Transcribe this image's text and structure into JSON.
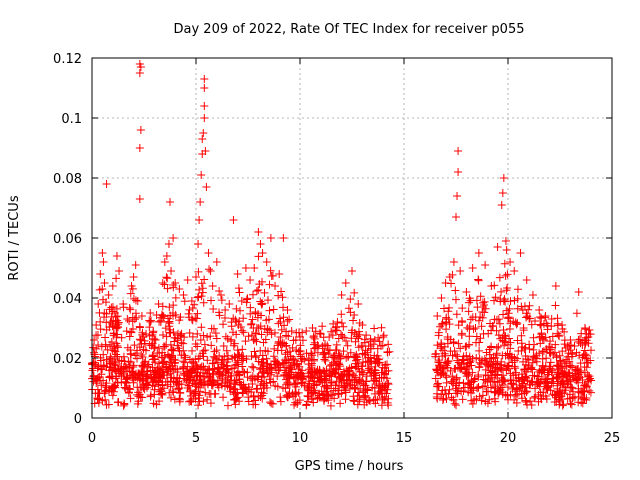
{
  "chart_data": {
    "type": "scatter",
    "title": "Day 209 of 2022, Rate Of TEC Index for receiver p055",
    "xlabel": "GPS time / hours",
    "ylabel": "ROTI / TECUs",
    "xlim": [
      0,
      25
    ],
    "ylim": [
      0,
      0.12
    ],
    "xticks": [
      0,
      5,
      10,
      15,
      20,
      25
    ],
    "xtick_labels": [
      "0",
      "5",
      "10",
      "15",
      "20",
      "25"
    ],
    "yticks": [
      0,
      0.02,
      0.04,
      0.06,
      0.08,
      0.1,
      0.12
    ],
    "ytick_labels": [
      "0",
      "0.02",
      "0.04",
      "0.06",
      "0.08",
      "0.1",
      "0.12"
    ],
    "grid": true,
    "marker": "+",
    "color": "#ff0000",
    "data_gap_hours": [
      14.3,
      16.5
    ],
    "series": [
      {
        "name": "ROTI p055",
        "points": [
          [
            0.0,
            0.018
          ],
          [
            0.1,
            0.026
          ],
          [
            0.2,
            0.031
          ],
          [
            0.3,
            0.038
          ],
          [
            0.4,
            0.048
          ],
          [
            0.5,
            0.055
          ],
          [
            0.55,
            0.052
          ],
          [
            0.6,
            0.045
          ],
          [
            0.7,
            0.078
          ],
          [
            0.8,
            0.041
          ],
          [
            1.0,
            0.044
          ],
          [
            1.1,
            0.035
          ],
          [
            1.2,
            0.054
          ],
          [
            1.3,
            0.049
          ],
          [
            1.5,
            0.038
          ],
          [
            1.7,
            0.033
          ],
          [
            1.9,
            0.044
          ],
          [
            2.0,
            0.047
          ],
          [
            2.1,
            0.051
          ],
          [
            2.2,
            0.039
          ],
          [
            2.3,
            0.073
          ],
          [
            2.3,
            0.09
          ],
          [
            2.35,
            0.096
          ],
          [
            2.3,
            0.115
          ],
          [
            2.3,
            0.118
          ],
          [
            2.35,
            0.117
          ],
          [
            2.4,
            0.034
          ],
          [
            2.6,
            0.028
          ],
          [
            2.8,
            0.035
          ],
          [
            3.0,
            0.026
          ],
          [
            3.2,
            0.038
          ],
          [
            3.4,
            0.045
          ],
          [
            3.5,
            0.052
          ],
          [
            3.6,
            0.054
          ],
          [
            3.7,
            0.058
          ],
          [
            3.75,
            0.072
          ],
          [
            3.8,
            0.049
          ],
          [
            3.9,
            0.06
          ],
          [
            4.0,
            0.045
          ],
          [
            4.2,
            0.043
          ],
          [
            4.4,
            0.041
          ],
          [
            4.6,
            0.046
          ],
          [
            4.8,
            0.039
          ],
          [
            5.0,
            0.047
          ],
          [
            5.1,
            0.058
          ],
          [
            5.15,
            0.066
          ],
          [
            5.2,
            0.072
          ],
          [
            5.25,
            0.081
          ],
          [
            5.3,
            0.088
          ],
          [
            5.3,
            0.093
          ],
          [
            5.35,
            0.095
          ],
          [
            5.4,
            0.1
          ],
          [
            5.4,
            0.104
          ],
          [
            5.4,
            0.11
          ],
          [
            5.4,
            0.113
          ],
          [
            5.45,
            0.089
          ],
          [
            5.5,
            0.077
          ],
          [
            5.6,
            0.055
          ],
          [
            5.7,
            0.049
          ],
          [
            5.8,
            0.044
          ],
          [
            6.0,
            0.052
          ],
          [
            6.2,
            0.041
          ],
          [
            6.4,
            0.036
          ],
          [
            6.6,
            0.038
          ],
          [
            6.8,
            0.066
          ],
          [
            7.0,
            0.048
          ],
          [
            7.2,
            0.039
          ],
          [
            7.4,
            0.05
          ],
          [
            7.6,
            0.046
          ],
          [
            7.8,
            0.05
          ],
          [
            8.0,
            0.062
          ],
          [
            8.1,
            0.058
          ],
          [
            8.2,
            0.055
          ],
          [
            8.4,
            0.052
          ],
          [
            8.6,
            0.06
          ],
          [
            8.8,
            0.044
          ],
          [
            9.0,
            0.048
          ],
          [
            9.2,
            0.06
          ],
          [
            9.4,
            0.036
          ],
          [
            9.6,
            0.029
          ],
          [
            9.8,
            0.026
          ],
          [
            10.0,
            0.027
          ],
          [
            10.3,
            0.029
          ],
          [
            10.6,
            0.03
          ],
          [
            11.0,
            0.028
          ],
          [
            11.4,
            0.027
          ],
          [
            11.8,
            0.032
          ],
          [
            12.0,
            0.041
          ],
          [
            12.2,
            0.045
          ],
          [
            12.5,
            0.049
          ],
          [
            12.8,
            0.038
          ],
          [
            13.0,
            0.031
          ],
          [
            13.3,
            0.024
          ],
          [
            13.6,
            0.026
          ],
          [
            14.0,
            0.027
          ],
          [
            14.2,
            0.022
          ],
          [
            16.6,
            0.034
          ],
          [
            16.8,
            0.04
          ],
          [
            17.0,
            0.045
          ],
          [
            17.2,
            0.047
          ],
          [
            17.4,
            0.052
          ],
          [
            17.5,
            0.067
          ],
          [
            17.55,
            0.074
          ],
          [
            17.6,
            0.082
          ],
          [
            17.6,
            0.089
          ],
          [
            17.7,
            0.049
          ],
          [
            18.0,
            0.042
          ],
          [
            18.3,
            0.05
          ],
          [
            18.6,
            0.055
          ],
          [
            18.9,
            0.051
          ],
          [
            19.2,
            0.044
          ],
          [
            19.5,
            0.057
          ],
          [
            19.7,
            0.071
          ],
          [
            19.75,
            0.075
          ],
          [
            19.8,
            0.08
          ],
          [
            19.9,
            0.059
          ],
          [
            20.1,
            0.052
          ],
          [
            20.3,
            0.049
          ],
          [
            20.6,
            0.055
          ],
          [
            20.9,
            0.046
          ],
          [
            21.2,
            0.041
          ],
          [
            21.5,
            0.036
          ],
          [
            21.8,
            0.034
          ],
          [
            22.1,
            0.033
          ],
          [
            22.3,
            0.044
          ],
          [
            22.6,
            0.031
          ],
          [
            23.0,
            0.026
          ],
          [
            23.2,
            0.024
          ],
          [
            23.4,
            0.042
          ],
          [
            23.7,
            0.03
          ],
          [
            23.9,
            0.028
          ]
        ]
      }
    ]
  }
}
